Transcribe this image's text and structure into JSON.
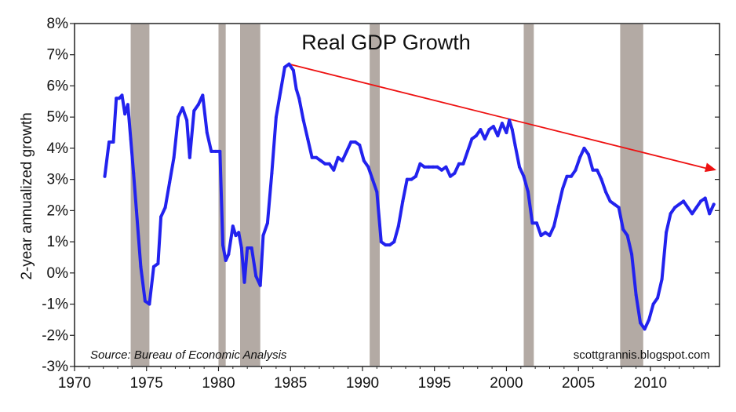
{
  "chart_data": {
    "type": "line",
    "title": "Real GDP Growth",
    "xlabel": "",
    "ylabel": "2-year annualized growth",
    "xlim": [
      1970,
      2014.8
    ],
    "ylim": [
      -3,
      8
    ],
    "x_ticks": [
      1970,
      1975,
      1980,
      1985,
      1990,
      1995,
      2000,
      2005,
      2010
    ],
    "x_tick_labels": [
      "1970",
      "1975",
      "1980",
      "1985",
      "1990",
      "1995",
      "2000",
      "2005",
      "2010"
    ],
    "y_ticks": [
      -3,
      -2,
      -1,
      0,
      1,
      2,
      3,
      4,
      5,
      6,
      7,
      8
    ],
    "y_tick_labels": [
      "-3%",
      "-2%",
      "-1%",
      "0%",
      "1%",
      "2%",
      "3%",
      "4%",
      "5%",
      "6%",
      "7%",
      "8%"
    ],
    "grid": false,
    "annotations": {
      "source": "Source:  Bureau of Economic Analysis",
      "site": "scottgrannis.blogspot.com"
    },
    "recessions": [
      [
        1973.9,
        1975.2
      ],
      [
        1980.0,
        1980.5
      ],
      [
        1981.5,
        1982.9
      ],
      [
        1990.5,
        1991.2
      ],
      [
        2001.2,
        2001.9
      ],
      [
        2007.9,
        2009.5
      ]
    ],
    "trend_line": {
      "x": [
        1984.9,
        2014.8
      ],
      "y": [
        6.7,
        3.3
      ],
      "color": "#ee1111"
    },
    "series": [
      {
        "color": "#2222ee",
        "x": [
          1972.1,
          1972.4,
          1972.7,
          1972.9,
          1973.1,
          1973.3,
          1973.5,
          1973.7,
          1973.9,
          1974.1,
          1974.3,
          1974.6,
          1974.9,
          1975.2,
          1975.5,
          1975.8,
          1976.0,
          1976.3,
          1976.6,
          1976.9,
          1977.2,
          1977.5,
          1977.8,
          1978.0,
          1978.3,
          1978.6,
          1978.9,
          1979.2,
          1979.5,
          1979.8,
          1980.1,
          1980.3,
          1980.5,
          1980.7,
          1981.0,
          1981.2,
          1981.4,
          1981.6,
          1981.8,
          1982.0,
          1982.3,
          1982.6,
          1982.9,
          1983.1,
          1983.4,
          1983.7,
          1984.0,
          1984.3,
          1984.6,
          1984.9,
          1985.2,
          1985.4,
          1985.6,
          1985.9,
          1986.2,
          1986.5,
          1986.8,
          1987.1,
          1987.4,
          1987.7,
          1988.0,
          1988.3,
          1988.6,
          1988.9,
          1989.2,
          1989.5,
          1989.8,
          1990.1,
          1990.4,
          1990.7,
          1991.0,
          1991.3,
          1991.6,
          1991.9,
          1992.2,
          1992.5,
          1992.8,
          1993.1,
          1993.4,
          1993.7,
          1994.0,
          1994.3,
          1994.6,
          1994.9,
          1995.2,
          1995.5,
          1995.8,
          1996.1,
          1996.4,
          1996.7,
          1997.0,
          1997.3,
          1997.6,
          1997.9,
          1998.2,
          1998.5,
          1998.8,
          1999.1,
          1999.4,
          1999.7,
          2000.0,
          2000.2,
          2000.4,
          2000.6,
          2000.9,
          2001.2,
          2001.5,
          2001.8,
          2002.1,
          2002.4,
          2002.7,
          2003.0,
          2003.3,
          2003.6,
          2003.9,
          2004.2,
          2004.5,
          2004.8,
          2005.1,
          2005.4,
          2005.7,
          2006.0,
          2006.3,
          2006.6,
          2006.9,
          2007.2,
          2007.5,
          2007.8,
          2008.1,
          2008.4,
          2008.7,
          2009.0,
          2009.3,
          2009.6,
          2009.9,
          2010.2,
          2010.5,
          2010.8,
          2011.1,
          2011.4,
          2011.7,
          2012.0,
          2012.3,
          2012.6,
          2012.9,
          2013.2,
          2013.5,
          2013.8,
          2014.1,
          2014.4
        ],
        "values": [
          3.1,
          4.2,
          4.2,
          5.6,
          5.6,
          5.7,
          5.1,
          5.4,
          4.3,
          3.2,
          2.0,
          0.2,
          -0.9,
          -1.0,
          0.2,
          0.3,
          1.8,
          2.1,
          2.9,
          3.7,
          5.0,
          5.3,
          4.9,
          3.7,
          5.2,
          5.4,
          5.7,
          4.5,
          3.9,
          3.9,
          3.9,
          0.9,
          0.4,
          0.6,
          1.5,
          1.2,
          1.3,
          0.8,
          -0.3,
          0.8,
          0.8,
          -0.1,
          -0.4,
          1.2,
          1.6,
          3.2,
          5.0,
          5.8,
          6.6,
          6.7,
          6.5,
          5.9,
          5.6,
          4.9,
          4.3,
          3.7,
          3.7,
          3.6,
          3.5,
          3.5,
          3.3,
          3.7,
          3.6,
          3.9,
          4.2,
          4.2,
          4.1,
          3.6,
          3.4,
          3.0,
          2.6,
          1.0,
          0.9,
          0.9,
          1.0,
          1.5,
          2.3,
          3.0,
          3.0,
          3.1,
          3.5,
          3.4,
          3.4,
          3.4,
          3.4,
          3.3,
          3.4,
          3.1,
          3.2,
          3.5,
          3.5,
          3.9,
          4.3,
          4.4,
          4.6,
          4.3,
          4.6,
          4.7,
          4.4,
          4.8,
          4.5,
          4.9,
          4.6,
          4.1,
          3.4,
          3.1,
          2.6,
          1.6,
          1.6,
          1.2,
          1.3,
          1.2,
          1.5,
          2.1,
          2.7,
          3.1,
          3.1,
          3.3,
          3.7,
          4.0,
          3.8,
          3.3,
          3.3,
          3.0,
          2.6,
          2.3,
          2.2,
          2.1,
          1.4,
          1.2,
          0.6,
          -0.7,
          -1.6,
          -1.8,
          -1.5,
          -1.0,
          -0.8,
          -0.2,
          1.3,
          1.9,
          2.1,
          2.2,
          2.3,
          2.1,
          1.9,
          2.1,
          2.3,
          2.4,
          1.9,
          2.2
        ]
      }
    ]
  }
}
